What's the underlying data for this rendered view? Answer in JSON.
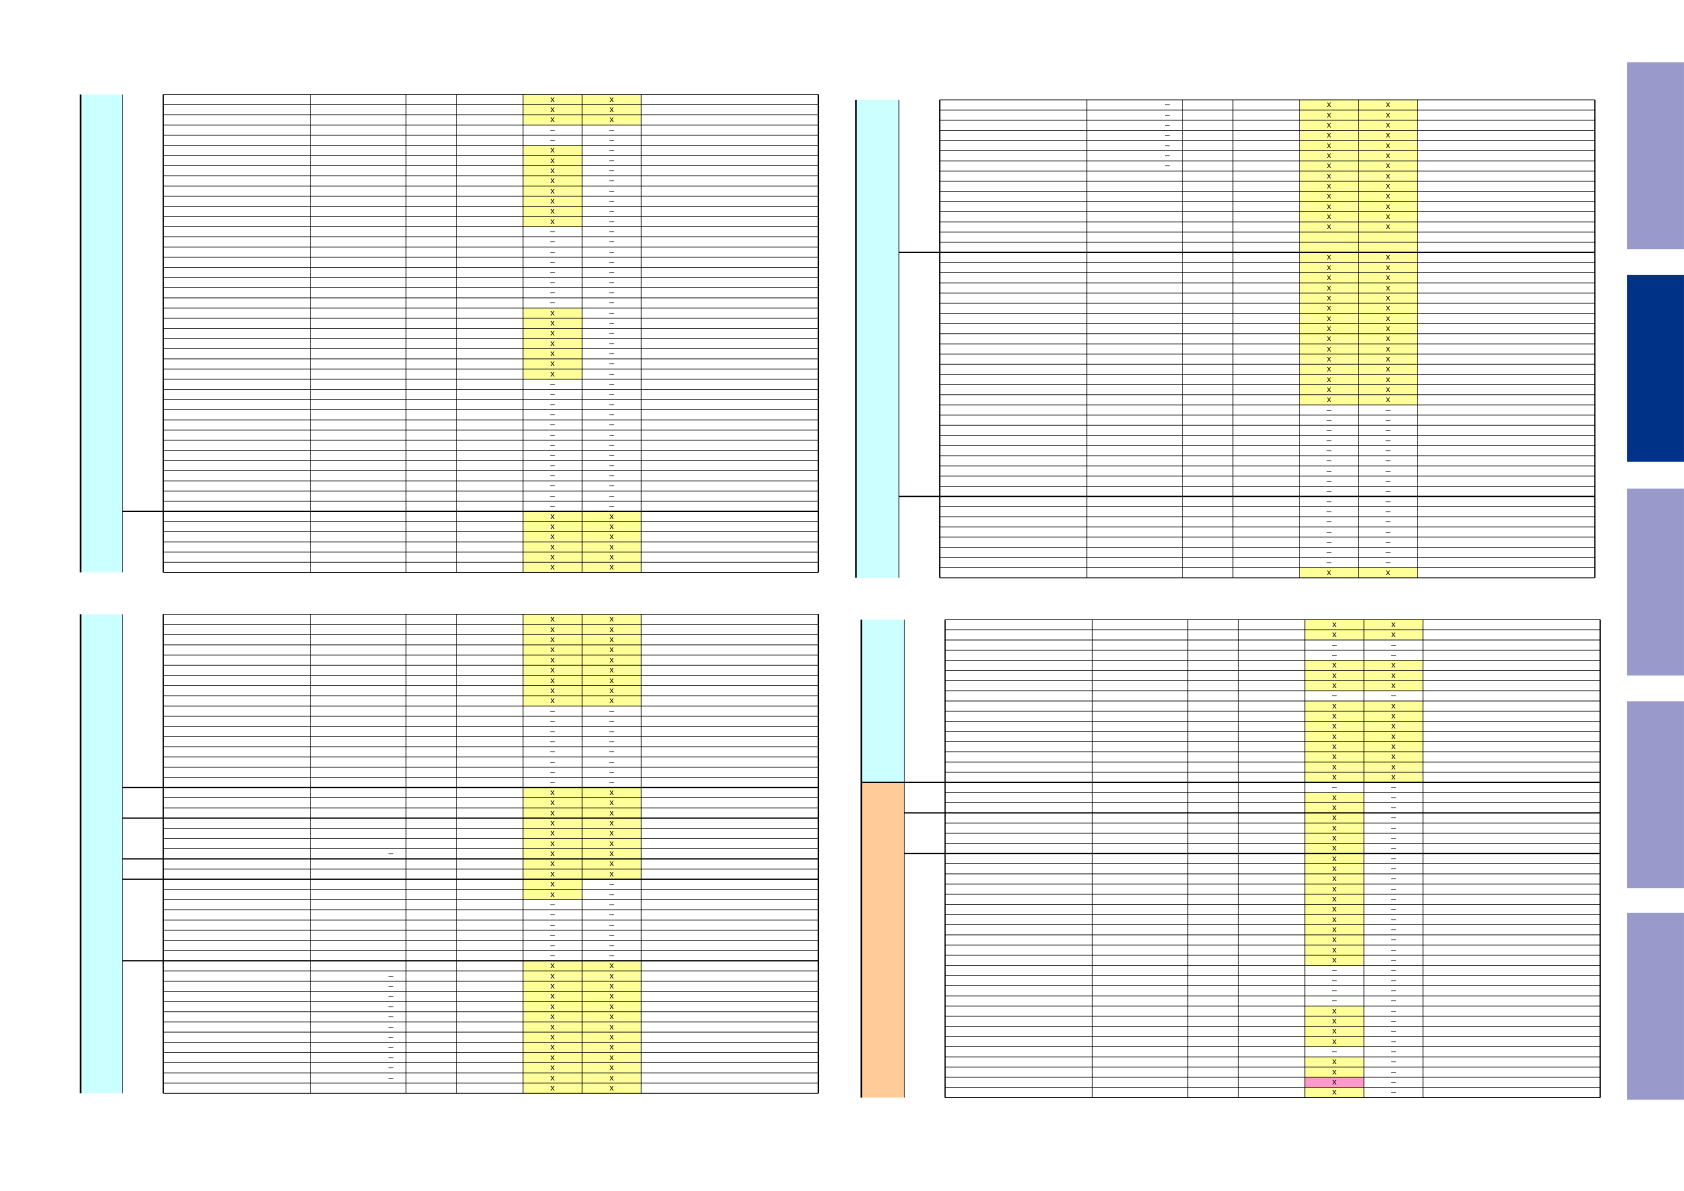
{
  "highlight": "#ffff99",
  "tables": [
    {
      "rows": [
        [
          null,
          "x",
          "x"
        ],
        [
          null,
          "x",
          "x"
        ],
        [
          null,
          "x",
          "x"
        ],
        [
          null,
          "–",
          "–"
        ],
        [
          null,
          "–",
          "–"
        ],
        [
          null,
          "x",
          "–"
        ],
        [
          null,
          "x",
          "–"
        ],
        [
          null,
          "x",
          "–"
        ],
        [
          null,
          "x",
          "–"
        ],
        [
          null,
          "x",
          "–"
        ],
        [
          null,
          "x",
          "–"
        ],
        [
          null,
          "x",
          "–"
        ],
        [
          null,
          "x",
          "–"
        ],
        [
          null,
          "–",
          "–"
        ],
        [
          null,
          "–",
          "–"
        ],
        [
          null,
          "–",
          "–"
        ],
        [
          null,
          "–",
          "–"
        ],
        [
          null,
          "–",
          "–"
        ],
        [
          null,
          "–",
          "–"
        ],
        [
          null,
          "–",
          "–"
        ],
        [
          null,
          "–",
          "–"
        ],
        [
          null,
          "x",
          "–"
        ],
        [
          null,
          "x",
          "–"
        ],
        [
          null,
          "x",
          "–"
        ],
        [
          null,
          "x",
          "–"
        ],
        [
          null,
          "x",
          "–"
        ],
        [
          null,
          "x",
          "–"
        ],
        [
          null,
          "x",
          "–"
        ],
        [
          null,
          "–",
          "–"
        ],
        [
          null,
          "–",
          "–"
        ],
        [
          null,
          "–",
          "–"
        ],
        [
          null,
          "–",
          "–"
        ],
        [
          null,
          "–",
          "–"
        ],
        [
          null,
          "–",
          "–"
        ],
        [
          null,
          "–",
          "–"
        ],
        [
          null,
          "–",
          "–"
        ],
        [
          null,
          "–",
          "–"
        ],
        [
          null,
          "–",
          "–"
        ],
        [
          null,
          "–",
          "–"
        ],
        [
          null,
          "–",
          "–"
        ],
        [
          null,
          "–",
          "–"
        ],
        [
          null,
          "x",
          "x"
        ],
        [
          null,
          "x",
          "x"
        ],
        [
          null,
          "x",
          "x"
        ],
        [
          null,
          "x",
          "x"
        ],
        [
          null,
          "x",
          "x"
        ],
        [
          null,
          "x",
          "x"
        ]
      ]
    },
    {
      "rows": [
        [
          "–",
          "x",
          "x"
        ],
        [
          "–",
          "x",
          "x"
        ],
        [
          "–",
          "x",
          "x"
        ],
        [
          "–",
          "x",
          "x"
        ],
        [
          "–",
          "x",
          "x"
        ],
        [
          "–",
          "x",
          "x"
        ],
        [
          "–",
          "x",
          "x"
        ],
        [
          null,
          "x",
          "x"
        ],
        [
          null,
          "x",
          "x"
        ],
        [
          null,
          "x",
          "x"
        ],
        [
          null,
          "x",
          "x"
        ],
        [
          null,
          "x",
          "x"
        ],
        [
          null,
          "x",
          "x"
        ],
        [
          null,
          null,
          null
        ],
        [
          null,
          null,
          null
        ],
        [
          null,
          "x",
          "x"
        ],
        [
          null,
          "x",
          "x"
        ],
        [
          null,
          "x",
          "x"
        ],
        [
          null,
          "x",
          "x"
        ],
        [
          null,
          "x",
          "x"
        ],
        [
          null,
          "x",
          "x"
        ],
        [
          null,
          "x",
          "x"
        ],
        [
          null,
          "x",
          "x"
        ],
        [
          null,
          "x",
          "x"
        ],
        [
          null,
          "x",
          "x"
        ],
        [
          null,
          "x",
          "x"
        ],
        [
          null,
          "x",
          "x"
        ],
        [
          null,
          "x",
          "x"
        ],
        [
          null,
          "x",
          "x"
        ],
        [
          null,
          "x",
          "x"
        ],
        [
          null,
          "–",
          "–"
        ],
        [
          null,
          "–",
          "–"
        ],
        [
          null,
          "–",
          "–"
        ],
        [
          null,
          "–",
          "–"
        ],
        [
          null,
          "–",
          "–"
        ],
        [
          null,
          "–",
          "–"
        ],
        [
          null,
          "–",
          "–"
        ],
        [
          null,
          "–",
          "–"
        ],
        [
          null,
          "–",
          "–"
        ],
        [
          null,
          "–",
          "–"
        ],
        [
          null,
          "–",
          "–"
        ],
        [
          null,
          "–",
          "–"
        ],
        [
          null,
          "–",
          "–"
        ],
        [
          null,
          "–",
          "–"
        ],
        [
          null,
          "–",
          "–"
        ],
        [
          null,
          "–",
          "–"
        ],
        [
          null,
          "x",
          "x"
        ]
      ]
    },
    {
      "rows": [
        [
          null,
          "x",
          "x"
        ],
        [
          null,
          "x",
          "x"
        ],
        [
          null,
          "x",
          "x"
        ],
        [
          null,
          "x",
          "x"
        ],
        [
          null,
          "x",
          "x"
        ],
        [
          null,
          "x",
          "x"
        ],
        [
          null,
          "x",
          "x"
        ],
        [
          null,
          "x",
          "x"
        ],
        [
          null,
          "x",
          "x"
        ],
        [
          null,
          "–",
          "–"
        ],
        [
          null,
          "–",
          "–"
        ],
        [
          null,
          "–",
          "–"
        ],
        [
          null,
          "–",
          "–"
        ],
        [
          null,
          "–",
          "–"
        ],
        [
          null,
          "–",
          "–"
        ],
        [
          null,
          "–",
          "–"
        ],
        [
          null,
          "–",
          "–"
        ],
        [
          null,
          "x",
          "x"
        ],
        [
          null,
          "x",
          "x"
        ],
        [
          null,
          "x",
          "x"
        ],
        [
          null,
          "x",
          "x"
        ],
        [
          null,
          "x",
          "x"
        ],
        [
          null,
          "x",
          "x"
        ],
        [
          "–",
          "x",
          "x"
        ],
        [
          null,
          "x",
          "x"
        ],
        [
          null,
          "x",
          "x"
        ],
        [
          null,
          "x",
          "–"
        ],
        [
          null,
          "x",
          "–"
        ],
        [
          null,
          "–",
          "–"
        ],
        [
          null,
          "–",
          "–"
        ],
        [
          null,
          "–",
          "–"
        ],
        [
          null,
          "–",
          "–"
        ],
        [
          null,
          "–",
          "–"
        ],
        [
          null,
          "–",
          "–"
        ],
        [
          null,
          "x",
          "x"
        ],
        [
          "–",
          "x",
          "x"
        ],
        [
          "–",
          "x",
          "x"
        ],
        [
          "–",
          "x",
          "x"
        ],
        [
          "–",
          "x",
          "x"
        ],
        [
          "–",
          "x",
          "x"
        ],
        [
          "–",
          "x",
          "x"
        ],
        [
          "–",
          "x",
          "x"
        ],
        [
          "–",
          "x",
          "x"
        ],
        [
          "–",
          "x",
          "x"
        ],
        [
          "–",
          "x",
          "x"
        ],
        [
          "–",
          "x",
          "x"
        ],
        [
          null,
          "x",
          "x"
        ]
      ]
    },
    {
      "rows": [
        [
          null,
          "x",
          "x"
        ],
        [
          null,
          "x",
          "x"
        ],
        [
          null,
          "–",
          "–"
        ],
        [
          null,
          "–",
          "–"
        ],
        [
          null,
          "x",
          "x"
        ],
        [
          null,
          "x",
          "x"
        ],
        [
          null,
          "x",
          "x"
        ],
        [
          null,
          "–",
          "–"
        ],
        [
          null,
          "x",
          "x"
        ],
        [
          null,
          "x",
          "x"
        ],
        [
          null,
          "x",
          "x"
        ],
        [
          null,
          "x",
          "x"
        ],
        [
          null,
          "x",
          "x"
        ],
        [
          null,
          "x",
          "x"
        ],
        [
          null,
          "x",
          "x"
        ],
        [
          null,
          "x",
          "x"
        ],
        [
          null,
          "–",
          "–"
        ],
        [
          null,
          "x",
          "–"
        ],
        [
          null,
          "x",
          "–"
        ],
        [
          null,
          "x",
          "–"
        ],
        [
          null,
          "x",
          "–"
        ],
        [
          null,
          "x",
          "–"
        ],
        [
          null,
          "x",
          "–"
        ],
        [
          null,
          "x",
          "–"
        ],
        [
          null,
          "x",
          "–"
        ],
        [
          null,
          "x",
          "–"
        ],
        [
          null,
          "x",
          "–"
        ],
        [
          null,
          "x",
          "–"
        ],
        [
          null,
          "x",
          "–"
        ],
        [
          null,
          "x",
          "–"
        ],
        [
          null,
          "x",
          "–"
        ],
        [
          null,
          "x",
          "–"
        ],
        [
          null,
          "x",
          "–"
        ],
        [
          null,
          "x",
          "–"
        ],
        [
          null,
          "–",
          "–"
        ],
        [
          null,
          "–",
          "–"
        ],
        [
          null,
          "–",
          "–"
        ],
        [
          null,
          "–",
          "–"
        ],
        [
          null,
          "x",
          "–"
        ],
        [
          null,
          "x",
          "–"
        ],
        [
          null,
          "x",
          "–"
        ],
        [
          null,
          "x",
          "–"
        ],
        [
          null,
          "–",
          "–"
        ],
        [
          null,
          "x",
          "–"
        ],
        [
          null,
          "x",
          "–"
        ],
        [
          null,
          "x",
          "–"
        ],
        [
          null,
          "x",
          "–"
        ]
      ]
    }
  ]
}
